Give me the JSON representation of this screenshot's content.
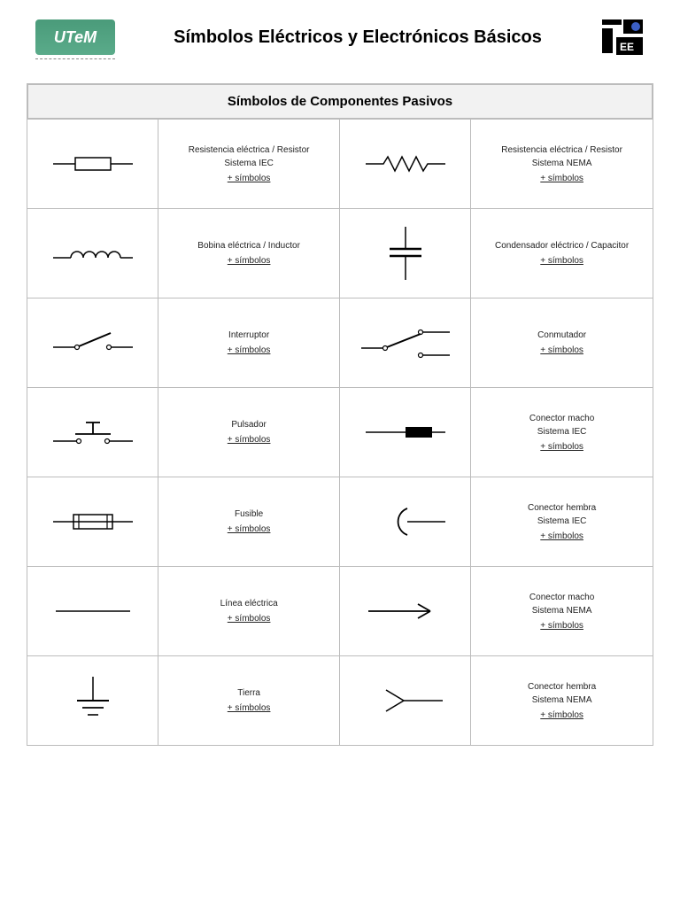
{
  "page": {
    "title": "Símbolos Eléctricos y Electrónicos Básicos",
    "logo_left_text": "UTeM"
  },
  "section": {
    "title": "Símbolos de Componentes Pasivos"
  },
  "more_link": "+ símbolos",
  "rows": [
    {
      "left_label": "Resistencia eléctrica / Resistor\nSistema IEC",
      "right_label": "Resistencia eléctrica / Resistor\nSistema NEMA"
    },
    {
      "left_label": "Bobina eléctrica / Inductor",
      "right_label": "Condensador eléctrico / Capacitor"
    },
    {
      "left_label": "Interruptor",
      "right_label": "Conmutador"
    },
    {
      "left_label": "Pulsador",
      "right_label": "Conector macho\nSistema IEC"
    },
    {
      "left_label": "Fusible",
      "right_label": "Conector hembra\nSistema IEC"
    },
    {
      "left_label": "Línea eléctrica",
      "right_label": "Conector macho\nSistema NEMA"
    },
    {
      "left_label": "Tierra",
      "right_label": "Conector hembra\nSistema NEMA"
    }
  ],
  "style": {
    "stroke": "#000000",
    "stroke_width": 1.5,
    "page_bg": "#ffffff",
    "border_color": "#bcbcbc",
    "header_bg": "#f2f2f2",
    "label_fontsize": 10,
    "logo_left_bg": "#4a9b7a",
    "logo_right_colors": {
      "black": "#000000",
      "blue": "#3b5fc4",
      "white": "#ffffff"
    }
  }
}
